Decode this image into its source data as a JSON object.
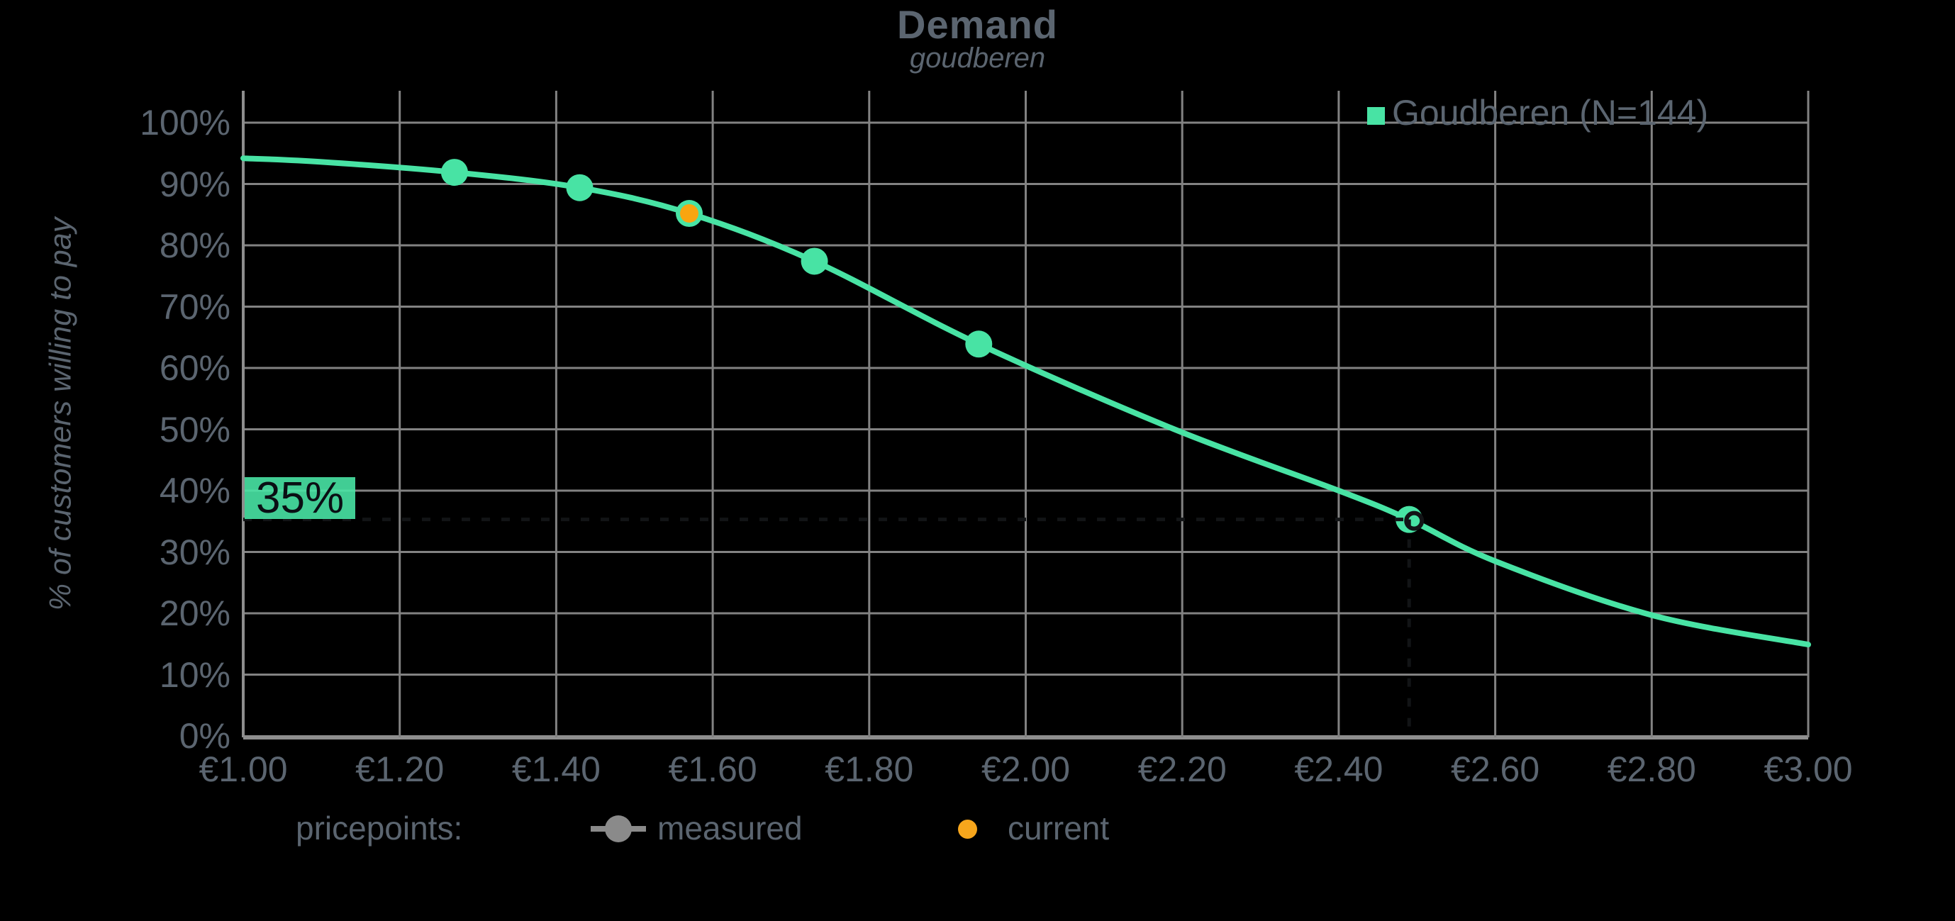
{
  "page": {
    "background": "#000000"
  },
  "title": {
    "text": "Demand",
    "subtitle": "goudberen"
  },
  "legend": {
    "series_label": "Goudberen (N=144)",
    "marker_color": "#48E3A4",
    "position": "top-right"
  },
  "y_axis": {
    "title": "% of customers willing to pay"
  },
  "threshold_badge": {
    "label": "35%"
  },
  "bottom_legend": {
    "title": "pricepoints:",
    "measured_label": "measured",
    "current_label": "current",
    "measured_color": "#8A8A8A",
    "current_color": "#F7A61C"
  },
  "colors": {
    "curve": "#48E3A4",
    "measured_point": "#48E3A4",
    "current_point_fill": "#F9A510",
    "current_point_ring": "#48E3A4",
    "grid": "#828282",
    "axis": "#8E8E8E",
    "text": "#5B6570",
    "badge_background": "#48E3A4",
    "badge_text": "#0A0F14",
    "crosshair": "#121416"
  },
  "chart_data": {
    "type": "line",
    "title": "Demand",
    "subtitle": "goudberen",
    "xlabel": "",
    "ylabel": "% of customers willing to pay",
    "grid": true,
    "legend_position": "top-right",
    "xlim": [
      1.0,
      3.0
    ],
    "ylim": [
      0,
      105
    ],
    "x_ticks": [
      1.0,
      1.2,
      1.4,
      1.6,
      1.8,
      2.0,
      2.2,
      2.4,
      2.6,
      2.8,
      3.0
    ],
    "x_tick_labels": [
      "€1.00",
      "€1.20",
      "€1.40",
      "€1.60",
      "€1.80",
      "€2.00",
      "€2.20",
      "€2.40",
      "€2.60",
      "€2.80",
      "€3.00"
    ],
    "y_ticks": [
      0,
      10,
      20,
      30,
      40,
      50,
      60,
      70,
      80,
      90,
      100
    ],
    "y_tick_labels": [
      "0%",
      "10%",
      "20%",
      "30%",
      "40%",
      "50%",
      "60%",
      "70%",
      "80%",
      "90%",
      "100%"
    ],
    "series": [
      {
        "name": "Goudberen (N=144)",
        "color": "#48E3A4",
        "x": [
          1.0,
          1.1,
          1.27,
          1.43,
          1.57,
          1.73,
          1.94,
          2.19,
          2.4,
          2.49,
          2.6,
          2.8,
          3.0
        ],
        "y": [
          94.2,
          93.6,
          91.9,
          89.4,
          85.2,
          77.4,
          63.9,
          50.0,
          40.0,
          35.3,
          28.5,
          19.7,
          14.9
        ]
      }
    ],
    "measured_points": [
      {
        "price": 1.27,
        "pct": 91.9
      },
      {
        "price": 1.43,
        "pct": 89.4
      },
      {
        "price": 1.73,
        "pct": 77.4
      },
      {
        "price": 1.94,
        "pct": 63.9
      },
      {
        "price": 2.49,
        "pct": 35.3
      }
    ],
    "current_point": {
      "price": 1.57,
      "pct": 85.2
    },
    "threshold": {
      "pct": 35.3,
      "label": "35%",
      "price_at_threshold": 2.49
    }
  }
}
